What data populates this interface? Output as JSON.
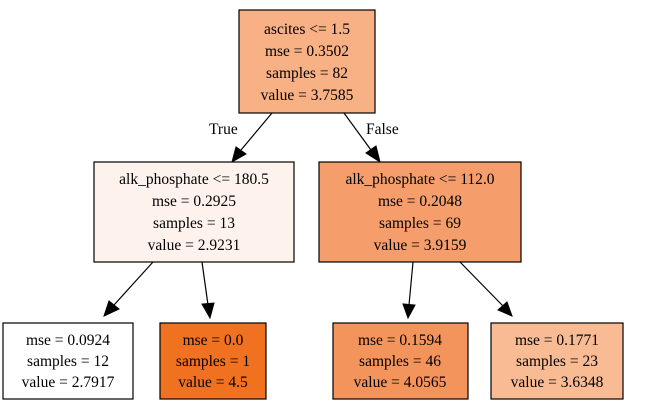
{
  "nodes": [
    {
      "id": "n0",
      "lines": [
        "ascites <= 1.5",
        "mse = 0.3502",
        "samples = 82",
        "value = 3.7585"
      ],
      "fill": "#f8b085"
    },
    {
      "id": "n1",
      "lines": [
        "alk_phosphate <= 180.5",
        "mse = 0.2925",
        "samples = 13",
        "value = 2.9231"
      ],
      "fill": "#fef3ec"
    },
    {
      "id": "n2",
      "lines": [
        "alk_phosphate <= 112.0",
        "mse = 0.2048",
        "samples = 69",
        "value = 3.9159"
      ],
      "fill": "#f59d6b"
    },
    {
      "id": "n3",
      "lines": [
        "mse = 0.0924",
        "samples = 12",
        "value = 2.7917"
      ],
      "fill": "#ffffff"
    },
    {
      "id": "n4",
      "lines": [
        "mse = 0.0",
        "samples = 1",
        "value = 4.5"
      ],
      "fill": "#f07220"
    },
    {
      "id": "n5",
      "lines": [
        "mse = 0.1594",
        "samples = 46",
        "value = 4.0565"
      ],
      "fill": "#f4945d"
    },
    {
      "id": "n6",
      "lines": [
        "mse = 0.1771",
        "samples = 23",
        "value = 3.6348"
      ],
      "fill": "#f9bb94"
    }
  ],
  "edges": [
    {
      "from": "n0",
      "to": "n1",
      "label": "True"
    },
    {
      "from": "n0",
      "to": "n2",
      "label": "False"
    },
    {
      "from": "n1",
      "to": "n3",
      "label": ""
    },
    {
      "from": "n1",
      "to": "n4",
      "label": ""
    },
    {
      "from": "n2",
      "to": "n5",
      "label": ""
    },
    {
      "from": "n2",
      "to": "n6",
      "label": ""
    }
  ]
}
